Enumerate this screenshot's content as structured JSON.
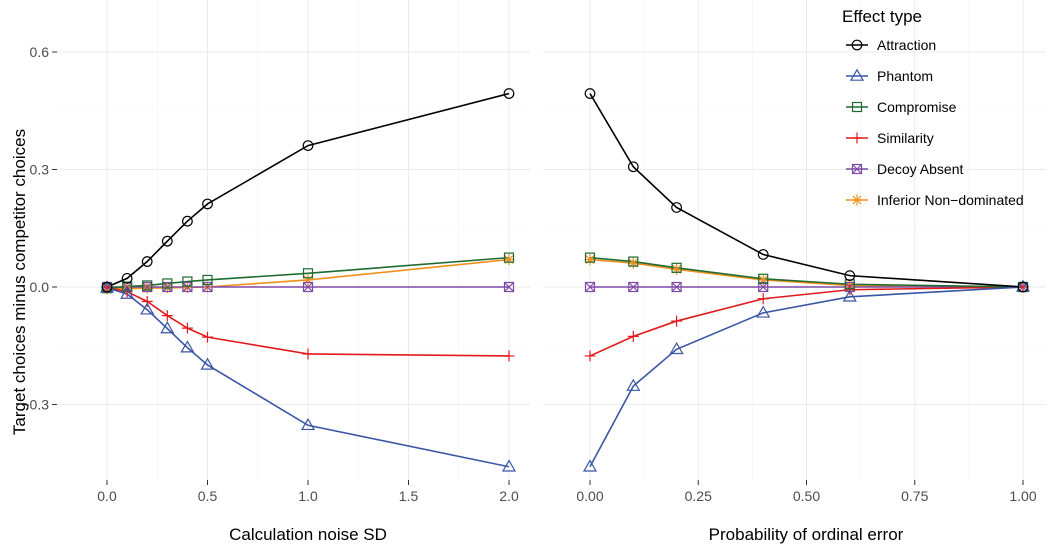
{
  "chart_data": [
    {
      "type": "line",
      "xlabel": "Calculation noise SD",
      "ylabel": "Target choices minus competitor choices",
      "xlim": [
        -0.1,
        2.1
      ],
      "ylim": [
        -0.46,
        0.62
      ],
      "x_ticks": [
        0.0,
        0.5,
        1.0,
        1.5,
        2.0
      ],
      "x_tick_labels": [
        "0.0",
        "0.5",
        "1.0",
        "1.5",
        "2.0"
      ],
      "y_ticks": [
        -0.3,
        0.0,
        0.3,
        0.6
      ],
      "y_tick_labels": [
        "-0.3",
        "0.0",
        "0.3",
        "0.6"
      ],
      "grid": true,
      "x": [
        0,
        0.1,
        0.2,
        0.3,
        0.4,
        0.5,
        1.0,
        2.0
      ],
      "series": [
        {
          "name": "Attraction",
          "values": [
            0.0,
            0.022,
            0.065,
            0.117,
            0.168,
            0.212,
            0.361,
            0.494
          ]
        },
        {
          "name": "Phantom",
          "values": [
            -0.002,
            -0.018,
            -0.058,
            -0.106,
            -0.155,
            -0.199,
            -0.353,
            -0.459
          ]
        },
        {
          "name": "Compromise",
          "values": [
            -0.003,
            0.001,
            0.004,
            0.009,
            0.014,
            0.018,
            0.035,
            0.075
          ]
        },
        {
          "name": "Similarity",
          "values": [
            -0.001,
            -0.012,
            -0.037,
            -0.073,
            -0.105,
            -0.128,
            -0.171,
            -0.176
          ]
        },
        {
          "name": "Decoy Absent",
          "values": [
            0.0,
            0.0,
            0.0,
            0.0,
            0.0,
            0.0,
            0.0,
            0.0
          ]
        },
        {
          "name": "Inferior Non-dominated",
          "values": [
            -0.005,
            -0.004,
            -0.003,
            -0.002,
            -0.001,
            0.0,
            0.018,
            0.07
          ]
        }
      ]
    },
    {
      "type": "line",
      "xlabel": "Probability of ordinal error",
      "ylabel": "",
      "xlim": [
        -0.05,
        1.05
      ],
      "ylim": [
        -0.46,
        0.62
      ],
      "x_ticks": [
        0.0,
        0.25,
        0.5,
        0.75,
        1.0
      ],
      "x_tick_labels": [
        "0.00",
        "0.25",
        "0.50",
        "0.75",
        "1.00"
      ],
      "grid": true,
      "x": [
        0,
        0.1,
        0.2,
        0.4,
        0.6,
        1.0
      ],
      "series": [
        {
          "name": "Attraction",
          "values": [
            0.494,
            0.307,
            0.203,
            0.083,
            0.029,
            0.0
          ]
        },
        {
          "name": "Phantom",
          "values": [
            -0.459,
            -0.253,
            -0.159,
            -0.066,
            -0.025,
            0.0
          ]
        },
        {
          "name": "Compromise",
          "values": [
            0.075,
            0.065,
            0.049,
            0.021,
            0.007,
            0.0
          ]
        },
        {
          "name": "Similarity",
          "values": [
            -0.176,
            -0.126,
            -0.087,
            -0.03,
            -0.007,
            0.0
          ]
        },
        {
          "name": "Decoy Absent",
          "values": [
            0.0,
            0.0,
            0.0,
            0.0,
            0.0,
            0.0
          ]
        },
        {
          "name": "Inferior Non-dominated",
          "values": [
            0.07,
            0.061,
            0.045,
            0.018,
            0.004,
            0.0
          ]
        }
      ]
    }
  ],
  "legend": {
    "title": "Effect type",
    "placement": "right",
    "items": [
      {
        "label": "Attraction",
        "color": "#000000",
        "marker": "circle"
      },
      {
        "label": "Phantom",
        "color": "#3a55a4",
        "marker": "triangle"
      },
      {
        "label": "Compromise",
        "color": "#1e6b31",
        "marker": "square"
      },
      {
        "label": "Similarity",
        "color": "#e31a1c",
        "marker": "plus"
      },
      {
        "label": "Decoy Absent",
        "color": "#7d48a8",
        "marker": "square-cross"
      },
      {
        "label": "Inferior Non−dominated",
        "color": "#f0901c",
        "marker": "asterisk"
      }
    ]
  }
}
